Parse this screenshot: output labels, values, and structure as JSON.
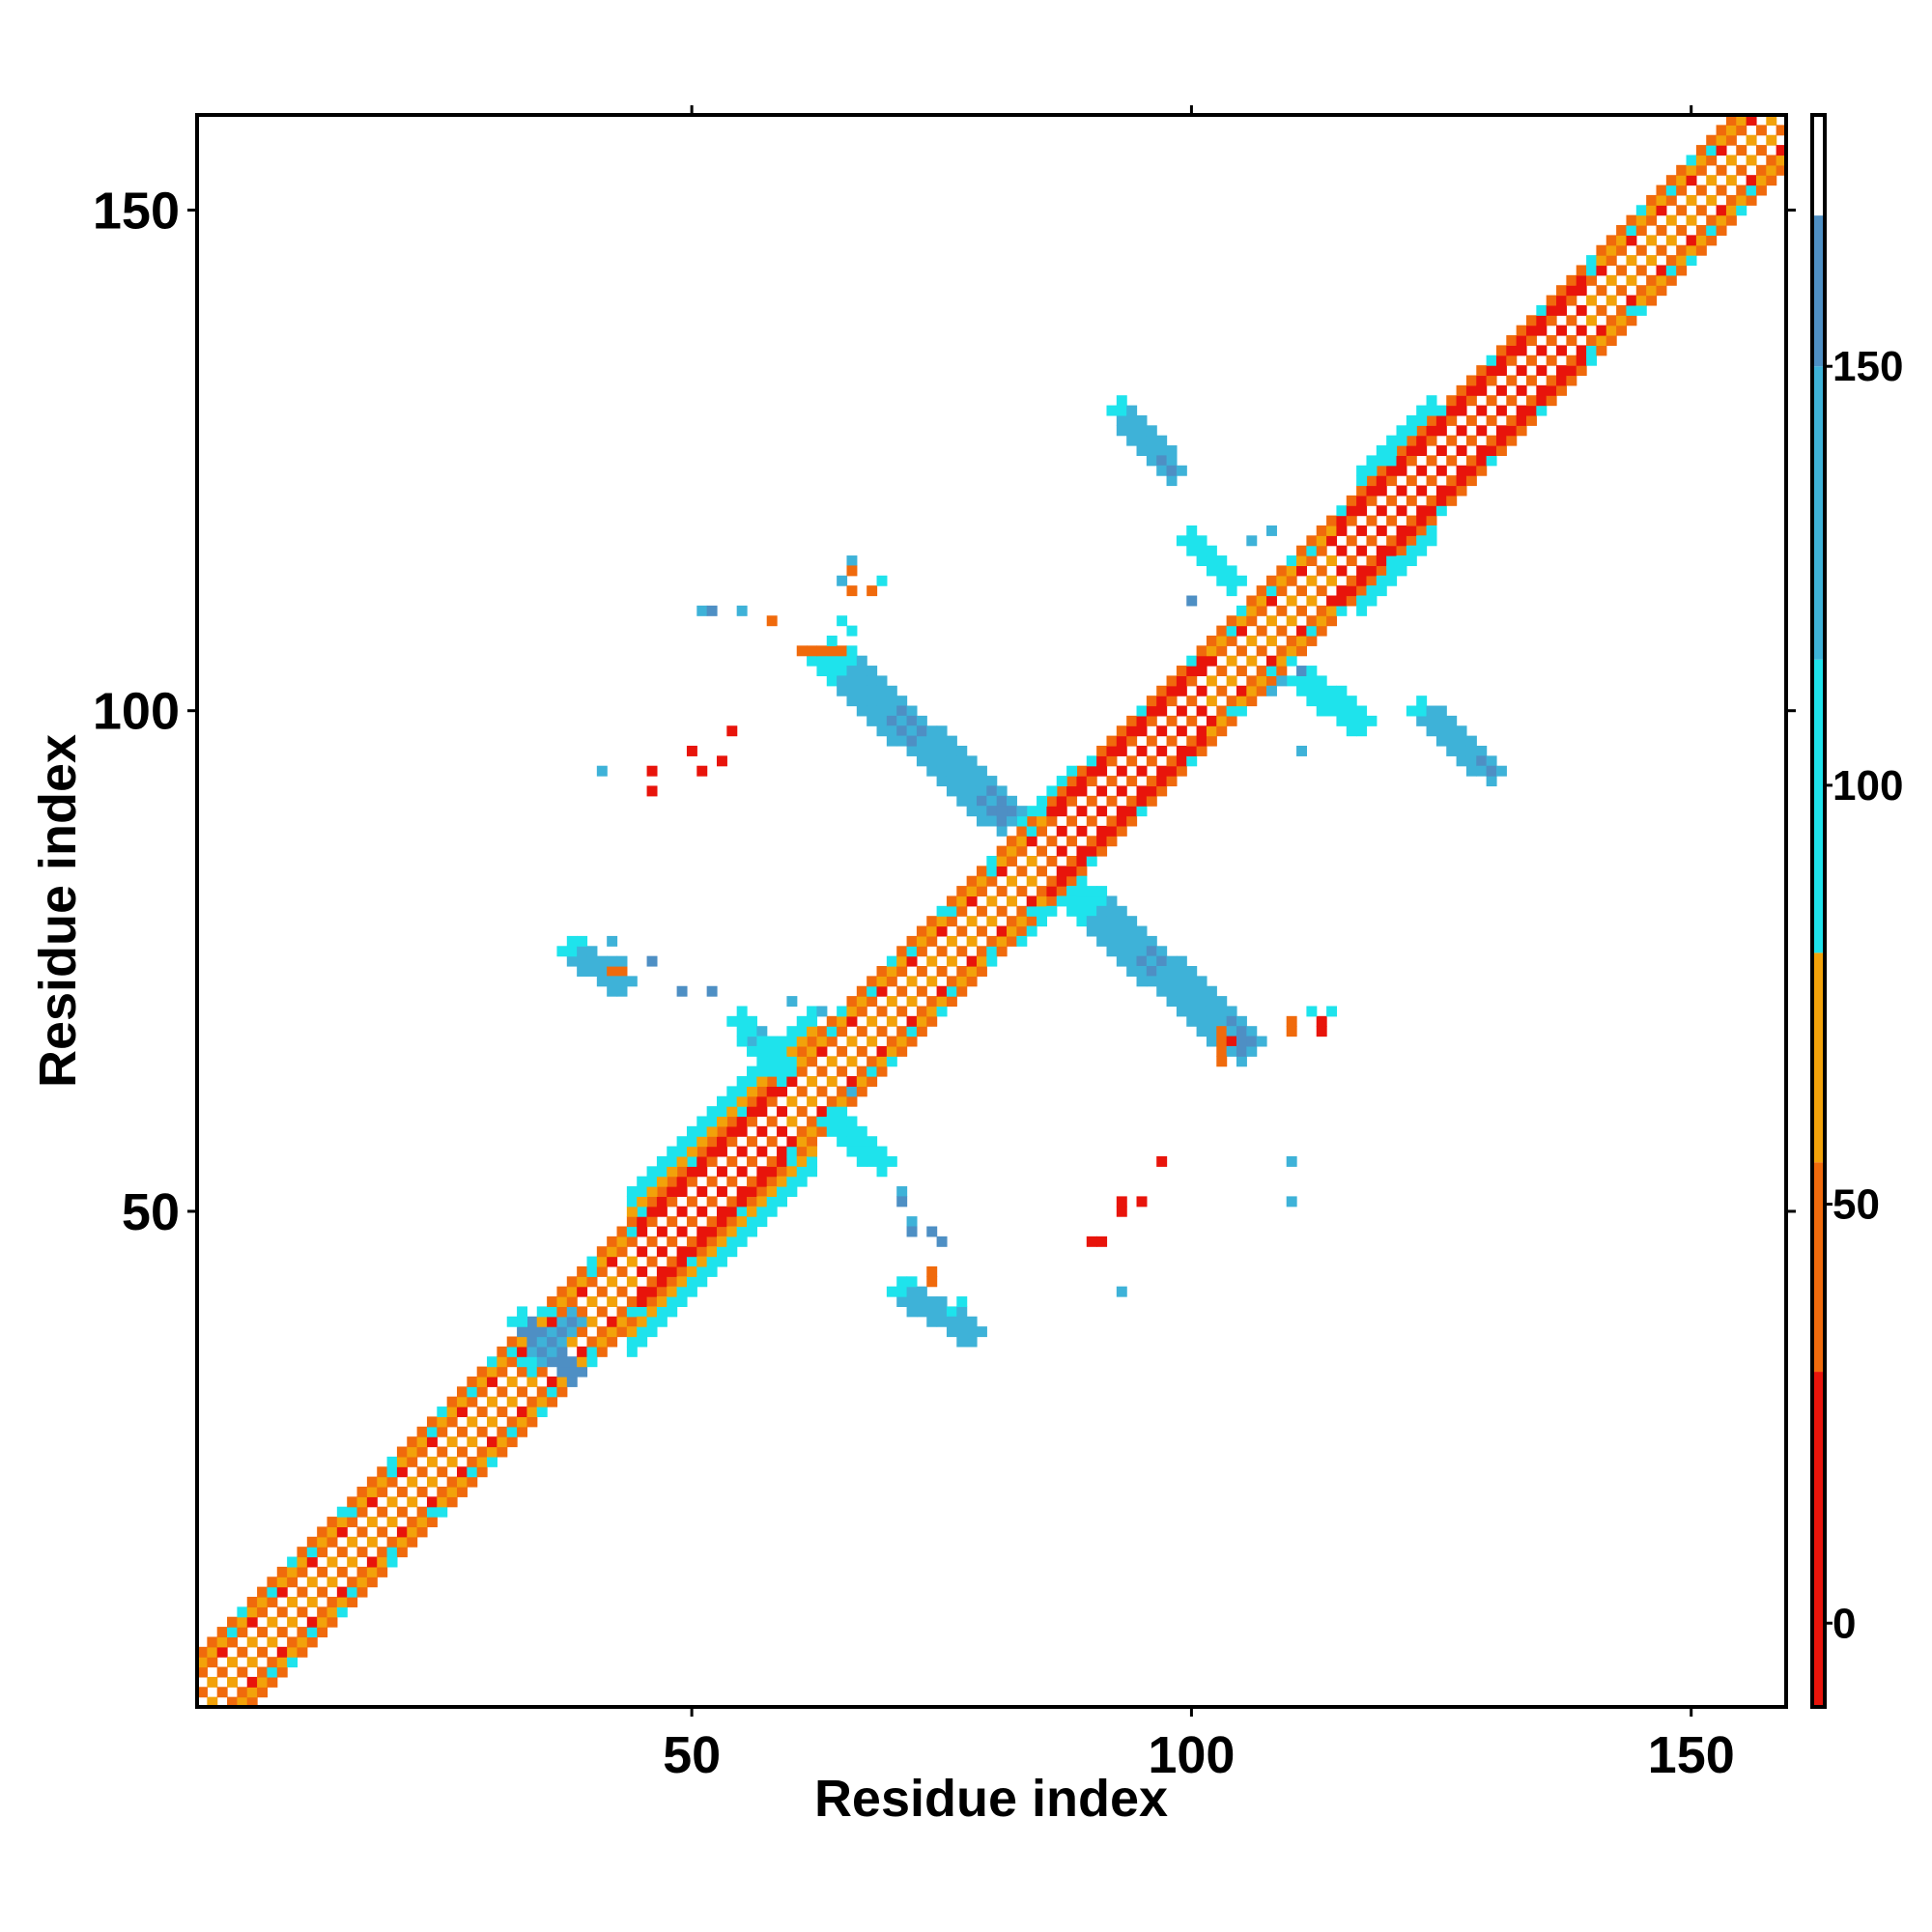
{
  "chart_data": {
    "type": "heatmap",
    "title": "",
    "xlabel": "Residue index",
    "ylabel": "Residue index",
    "xlim": [
      0.5,
      159.5
    ],
    "ylim": [
      0.5,
      159.5
    ],
    "x_ticks": [
      50,
      100,
      150
    ],
    "y_ticks": [
      50,
      100,
      150
    ],
    "x_tick_labels": [
      "50",
      "100",
      "150"
    ],
    "y_tick_labels": [
      "50",
      "100",
      "150"
    ],
    "colorbar": {
      "range": [
        -10,
        180
      ],
      "ticks": [
        0,
        50,
        100,
        150
      ],
      "tick_labels": [
        "0",
        "50",
        "100",
        "150"
      ],
      "bands": [
        {
          "from": -10,
          "to": 30,
          "color": "#e8140b"
        },
        {
          "from": 30,
          "to": 55,
          "color": "#f06a0c"
        },
        {
          "from": 55,
          "to": 80,
          "color": "#f2a20a"
        },
        {
          "from": 80,
          "to": 115,
          "color": "#1ee3ec"
        },
        {
          "from": 115,
          "to": 150,
          "color": "#3eb2d8"
        },
        {
          "from": 150,
          "to": 168,
          "color": "#4e8fc4"
        },
        {
          "from": 168,
          "to": 180,
          "color": "#ffffff"
        }
      ]
    },
    "diagonal_band": {
      "from": 1,
      "to": 159,
      "offsets": [
        -5,
        -4,
        -3,
        -2,
        -1,
        0,
        1,
        2,
        3,
        4,
        5
      ]
    },
    "features": [
      {
        "kind": "strip",
        "x": [
          64,
          81
        ],
        "y": [
          105,
          90
        ],
        "width": 2.2,
        "value": 150
      },
      {
        "kind": "strip",
        "x": [
          89,
          105
        ],
        "y": [
          81,
          67
        ],
        "width": 2.2,
        "value": 150
      },
      {
        "kind": "strip",
        "x": [
          93,
          98
        ],
        "y": [
          130,
          124
        ],
        "width": 1.6,
        "value": 160
      },
      {
        "kind": "strip",
        "x": [
          123,
          130
        ],
        "y": [
          100,
          94
        ],
        "width": 1.6,
        "value": 160
      },
      {
        "kind": "strip",
        "x": [
          100,
          104
        ],
        "y": [
          117,
          113
        ],
        "width": 1.6,
        "value": 100
      },
      {
        "kind": "strip",
        "x": [
          111,
          117
        ],
        "y": [
          103,
          99
        ],
        "width": 1.6,
        "value": 100
      },
      {
        "kind": "strip",
        "x": [
          38,
          43
        ],
        "y": [
          76,
          73
        ],
        "width": 1.5,
        "value": 130
      },
      {
        "kind": "strip",
        "x": [
          71,
          78
        ],
        "y": [
          42,
          38
        ],
        "width": 1.5,
        "value": 130
      },
      {
        "kind": "strip",
        "x": [
          64,
          69
        ],
        "y": [
          59,
          55
        ],
        "width": 1.4,
        "value": 100
      },
      {
        "kind": "strip",
        "x": [
          55,
          59
        ],
        "y": [
          69,
          64
        ],
        "width": 1.4,
        "value": 100
      },
      {
        "kind": "strip",
        "x": [
          33,
          38
        ],
        "y": [
          39,
          34
        ],
        "width": 1.8,
        "value": 150
      },
      {
        "kind": "strip",
        "x": [
          34,
          38
        ],
        "y": [
          35,
          39
        ],
        "width": 1.4,
        "value": 150
      },
      {
        "kind": "strip",
        "x": [
          61,
          65
        ],
        "y": [
          106,
          106
        ],
        "width": 0.9,
        "value": 40
      },
      {
        "kind": "strip",
        "x": [
          103,
          103
        ],
        "y": [
          65,
          68
        ],
        "width": 0.9,
        "value": 40
      },
      {
        "kind": "points",
        "value": 120,
        "xy": [
          [
            65,
            113
          ],
          [
            66,
            115
          ],
          [
            51,
            110
          ],
          [
            55,
            110
          ],
          [
            41,
            94
          ],
          [
            66,
            62
          ],
          [
            71,
            52
          ],
          [
            108,
            118
          ],
          [
            106,
            117
          ],
          [
            108,
            102
          ],
          [
            109,
            103
          ],
          [
            111,
            96
          ],
          [
            63,
            70
          ],
          [
            60,
            71
          ],
          [
            56,
            67
          ],
          [
            57,
            68
          ],
          [
            110,
            55
          ],
          [
            110,
            51
          ],
          [
            93,
            42
          ],
          [
            42,
            77
          ],
          [
            43,
            75
          ],
          [
            72,
            49
          ]
        ]
      },
      {
        "kind": "points",
        "value": 160,
        "xy": [
          [
            100,
            111
          ],
          [
            52,
            110
          ],
          [
            46,
            75
          ],
          [
            49,
            72
          ],
          [
            52,
            72
          ],
          [
            71,
            51
          ],
          [
            74,
            48
          ],
          [
            72,
            48
          ],
          [
            75,
            47
          ],
          [
            111,
            104
          ],
          [
            42,
            74
          ]
        ]
      },
      {
        "kind": "points",
        "value": 40,
        "xy": [
          [
            66,
            114
          ],
          [
            66,
            112
          ],
          [
            68,
            112
          ],
          [
            42,
            74
          ],
          [
            43,
            74
          ],
          [
            74,
            43
          ],
          [
            74,
            44
          ],
          [
            113,
            68
          ],
          [
            113,
            69
          ],
          [
            110,
            68
          ],
          [
            110,
            69
          ],
          [
            58,
            109
          ]
        ]
      },
      {
        "kind": "points",
        "value": 10,
        "xy": [
          [
            46,
            94
          ],
          [
            50,
            96
          ],
          [
            51,
            94
          ],
          [
            53,
            95
          ],
          [
            46,
            92
          ],
          [
            90,
            47
          ],
          [
            91,
            47
          ],
          [
            93,
            50
          ],
          [
            95,
            51
          ],
          [
            97,
            55
          ],
          [
            93,
            51
          ],
          [
            113,
            68
          ],
          [
            113,
            69
          ],
          [
            104,
            67
          ],
          [
            54,
            98
          ]
        ]
      },
      {
        "kind": "points",
        "value": 100,
        "xy": [
          [
            65,
            109
          ],
          [
            66,
            108
          ],
          [
            112,
            70
          ],
          [
            114,
            70
          ],
          [
            69,
            113
          ],
          [
            76,
            40
          ],
          [
            77,
            41
          ]
        ]
      }
    ]
  }
}
